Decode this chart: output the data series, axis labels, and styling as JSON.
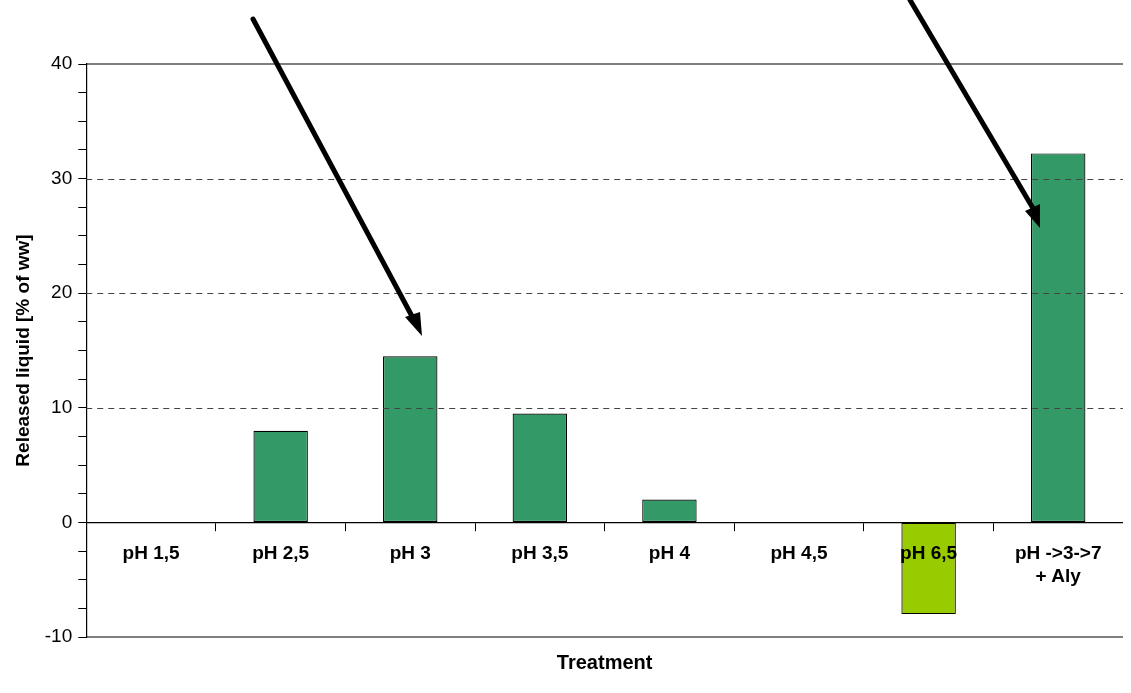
{
  "chart_data": {
    "type": "bar",
    "xlabel": "Treatment",
    "ylabel": "Released liquid [% of ww]",
    "categories": [
      "pH 1,5",
      "pH 2,5",
      "pH 3",
      "pH 3,5",
      "pH 4",
      "pH 4,5",
      "pH 6,5",
      "pH ->3->7\n+ Aly"
    ],
    "values": [
      0,
      8,
      14.5,
      9.5,
      2,
      0,
      -8,
      32.2
    ],
    "colors": [
      "#339966",
      "#339966",
      "#339966",
      "#339966",
      "#339966",
      "#339966",
      "#99cc00",
      "#339966"
    ],
    "ylim": [
      -10,
      40
    ],
    "yticks": [
      -10,
      {
        "value": -7.5,
        "label": null
      },
      {
        "value": -5,
        "label": null
      },
      {
        "value": -2.5,
        "label": null
      },
      0,
      {
        "value": 2.5,
        "label": null
      },
      {
        "value": 5,
        "label": null
      },
      {
        "value": 7.5,
        "label": null
      },
      10,
      {
        "value": 12.5,
        "label": null
      },
      {
        "value": 15,
        "label": null
      },
      {
        "value": 17.5,
        "label": null
      },
      20,
      {
        "value": 22.5,
        "label": null
      },
      {
        "value": 25,
        "label": null
      },
      {
        "value": 27.5,
        "label": null
      },
      30,
      {
        "value": 32.5,
        "label": null
      },
      {
        "value": 35,
        "label": null
      },
      {
        "value": 37.5,
        "label": null
      },
      40
    ],
    "grid": "y",
    "legend": false
  }
}
